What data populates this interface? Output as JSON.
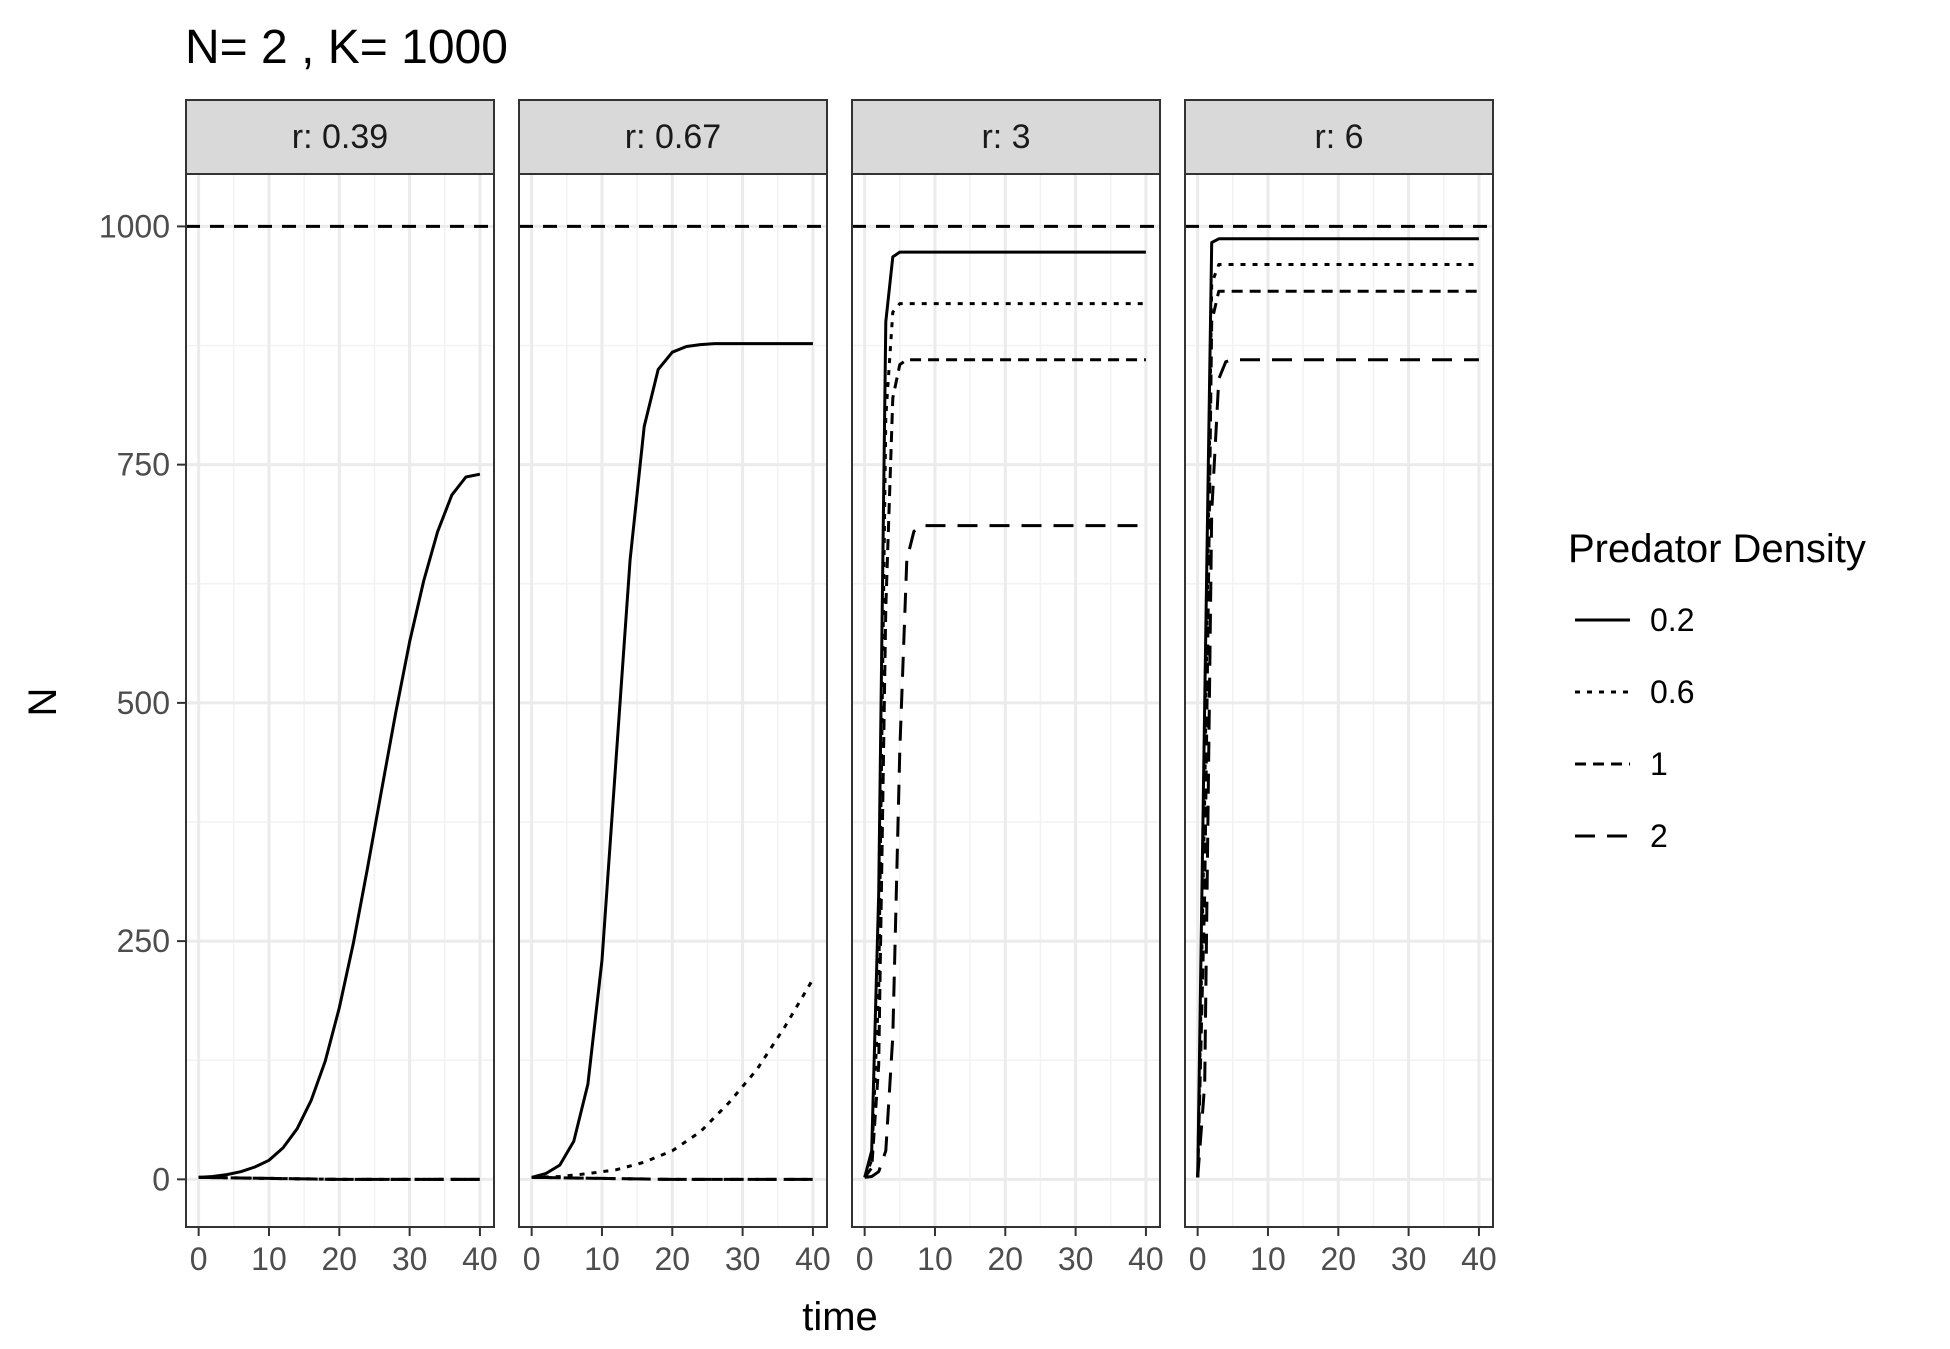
{
  "chart_data": {
    "type": "line",
    "title": "N= 2 , K= 1000",
    "xlabel": "time",
    "ylabel": "N",
    "xlim": [
      -1.8,
      42
    ],
    "ylim": [
      -50,
      1055
    ],
    "x_ticks": [
      0,
      10,
      20,
      30,
      40
    ],
    "y_ticks": [
      0,
      250,
      500,
      750,
      1000
    ],
    "carrying_capacity": 1000,
    "grid": true,
    "legend": {
      "title": "Predator Density",
      "position": "right",
      "entries": [
        {
          "label": "0.2",
          "dash": "solid"
        },
        {
          "label": "0.6",
          "dash": "dotted"
        },
        {
          "label": "1",
          "dash": "dashed"
        },
        {
          "label": "2",
          "dash": "longdash"
        }
      ]
    },
    "panels": [
      {
        "strip": "r: 0.39",
        "series": [
          {
            "name": "0.2",
            "dash": "solid",
            "x": [
              0,
              2,
              4,
              6,
              8,
              10,
              12,
              14,
              16,
              18,
              20,
              22,
              24,
              26,
              28,
              30,
              32,
              34,
              36,
              38,
              40
            ],
            "y": [
              2,
              3,
              5,
              8,
              13,
              20,
              33,
              53,
              83,
              124,
              180,
              248,
              326,
              408,
              489,
              564,
              628,
              680,
              718,
              737,
              740
            ]
          },
          {
            "name": "0.6",
            "dash": "dotted",
            "x": [
              0,
              10,
              20,
              30,
              40
            ],
            "y": [
              2,
              1,
              0,
              0,
              0
            ]
          },
          {
            "name": "1",
            "dash": "dashed",
            "x": [
              0,
              10,
              20,
              30,
              40
            ],
            "y": [
              2,
              1,
              0,
              0,
              0
            ]
          },
          {
            "name": "2",
            "dash": "longdash",
            "x": [
              0,
              10,
              20,
              30,
              40
            ],
            "y": [
              2,
              1,
              0,
              0,
              0
            ]
          }
        ]
      },
      {
        "strip": "r: 0.67",
        "series": [
          {
            "name": "0.2",
            "dash": "solid",
            "x": [
              0,
              2,
              4,
              6,
              8,
              10,
              12,
              14,
              16,
              18,
              20,
              22,
              24,
              26,
              28,
              30,
              35,
              40
            ],
            "y": [
              2,
              6,
              15,
              40,
              100,
              230,
              440,
              650,
              790,
              850,
              868,
              874,
              876,
              877,
              877,
              877,
              877,
              877
            ]
          },
          {
            "name": "0.6",
            "dash": "dotted",
            "x": [
              0,
              4,
              8,
              12,
              16,
              20,
              24,
              28,
              32,
              36,
              40
            ],
            "y": [
              2,
              3,
              6,
              10,
              18,
              30,
              50,
              80,
              115,
              160,
              210
            ]
          },
          {
            "name": "1",
            "dash": "dashed",
            "x": [
              0,
              10,
              20,
              30,
              40
            ],
            "y": [
              2,
              1,
              0,
              0,
              0
            ]
          },
          {
            "name": "2",
            "dash": "longdash",
            "x": [
              0,
              10,
              20,
              30,
              40
            ],
            "y": [
              2,
              1,
              0,
              0,
              0
            ]
          }
        ]
      },
      {
        "strip": "r: 3",
        "series": [
          {
            "name": "0.2",
            "dash": "solid",
            "x": [
              0,
              1,
              2,
              3,
              4,
              5,
              10,
              20,
              30,
              40
            ],
            "y": [
              2,
              30,
              300,
              900,
              968,
              973,
              973,
              973,
              973,
              973
            ]
          },
          {
            "name": "0.6",
            "dash": "dotted",
            "x": [
              0,
              1,
              2,
              3,
              4,
              5,
              10,
              20,
              30,
              40
            ],
            "y": [
              2,
              20,
              200,
              800,
              910,
              919,
              919,
              919,
              919,
              919
            ]
          },
          {
            "name": "1",
            "dash": "dashed",
            "x": [
              0,
              1,
              2,
              3,
              4,
              5,
              6,
              10,
              20,
              30,
              40
            ],
            "y": [
              2,
              12,
              120,
              600,
              820,
              855,
              860,
              860,
              860,
              860,
              860
            ]
          },
          {
            "name": "2",
            "dash": "longdash",
            "x": [
              0,
              1,
              2,
              3,
              4,
              5,
              6,
              7,
              8,
              10,
              20,
              30,
              40
            ],
            "y": [
              2,
              3,
              8,
              30,
              150,
              450,
              650,
              680,
              686,
              686,
              686,
              686,
              686
            ]
          }
        ]
      },
      {
        "strip": "r: 6",
        "series": [
          {
            "name": "0.2",
            "dash": "solid",
            "x": [
              0,
              1,
              2,
              3,
              4,
              10,
              20,
              30,
              40
            ],
            "y": [
              2,
              500,
              983,
              987,
              987,
              987,
              987,
              987,
              987
            ]
          },
          {
            "name": "0.6",
            "dash": "dotted",
            "x": [
              0,
              1,
              2,
              3,
              4,
              10,
              20,
              30,
              40
            ],
            "y": [
              2,
              400,
              940,
              960,
              960,
              960,
              960,
              960,
              960
            ]
          },
          {
            "name": "1",
            "dash": "dashed",
            "x": [
              0,
              1,
              2,
              3,
              4,
              10,
              20,
              30,
              40
            ],
            "y": [
              2,
              300,
              900,
              932,
              932,
              932,
              932,
              932,
              932
            ]
          },
          {
            "name": "2",
            "dash": "longdash",
            "x": [
              0,
              1,
              2,
              3,
              4,
              5,
              6,
              10,
              20,
              30,
              40
            ],
            "y": [
              2,
              100,
              700,
              840,
              858,
              860,
              860,
              860,
              860,
              860,
              860
            ]
          }
        ]
      }
    ]
  }
}
